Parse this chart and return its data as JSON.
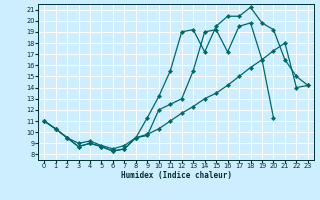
{
  "xlabel": "Humidex (Indice chaleur)",
  "bg_color": "#cceeff",
  "grid_color": "#ffffff",
  "line_color": "#006868",
  "xlim": [
    -0.5,
    23.5
  ],
  "ylim": [
    7.5,
    21.5
  ],
  "xticks": [
    0,
    1,
    2,
    3,
    4,
    5,
    6,
    7,
    8,
    9,
    10,
    11,
    12,
    13,
    14,
    15,
    16,
    17,
    18,
    19,
    20,
    21,
    22,
    23
  ],
  "yticks": [
    8,
    9,
    10,
    11,
    12,
    13,
    14,
    15,
    16,
    17,
    18,
    19,
    20,
    21
  ],
  "line1_x": [
    0,
    1,
    2,
    3,
    4,
    5,
    6,
    7,
    8,
    9,
    10,
    11,
    12,
    13,
    14,
    15,
    16,
    17,
    18,
    19,
    20,
    21,
    22,
    23
  ],
  "line1_y": [
    11,
    10.3,
    9.5,
    8.7,
    9.0,
    8.7,
    8.3,
    8.5,
    9.5,
    11.3,
    13.2,
    15.5,
    19.0,
    19.2,
    17.2,
    19.5,
    20.4,
    20.4,
    21.2,
    19.8,
    19.2,
    16.5,
    15.0,
    14.2
  ],
  "line2_x": [
    0,
    1,
    2,
    3,
    4,
    5,
    6,
    7,
    8,
    9,
    10,
    11,
    12,
    13,
    14,
    15,
    16,
    17,
    18,
    19,
    20
  ],
  "line2_y": [
    11,
    10.3,
    9.5,
    8.7,
    9.0,
    8.7,
    8.3,
    8.5,
    9.5,
    9.7,
    12.0,
    12.5,
    13.0,
    15.5,
    19.0,
    19.2,
    17.2,
    19.5,
    19.8,
    16.5,
    11.3
  ],
  "line3_x": [
    0,
    1,
    2,
    3,
    4,
    5,
    6,
    7,
    8,
    9,
    10,
    11,
    12,
    13,
    14,
    15,
    16,
    17,
    18,
    19,
    20,
    21,
    22,
    23
  ],
  "line3_y": [
    11,
    10.3,
    9.5,
    9.0,
    9.2,
    8.8,
    8.5,
    8.8,
    9.5,
    9.8,
    10.3,
    11.0,
    11.7,
    12.3,
    13.0,
    13.5,
    14.2,
    15.0,
    15.8,
    16.5,
    17.3,
    18.0,
    14.0,
    14.2
  ]
}
